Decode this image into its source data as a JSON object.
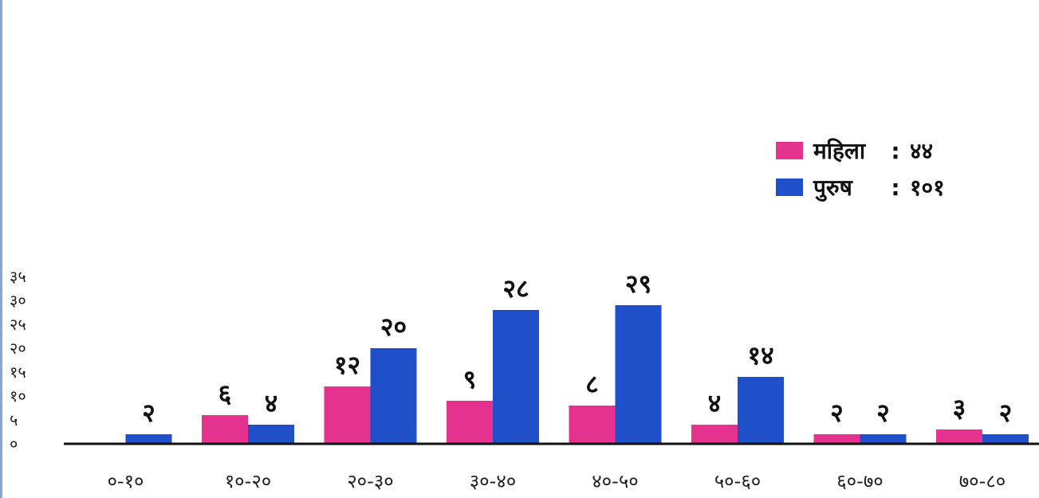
{
  "chart_data": {
    "type": "bar",
    "categories": [
      "०-१०",
      "१०-२०",
      "२०-३०",
      "३०-४०",
      "४०-५०",
      "५०-६०",
      "६०-७०",
      "७०-८०"
    ],
    "series": [
      {
        "name": "महिला",
        "color": "#e3338f",
        "values": [
          0,
          6,
          12,
          9,
          8,
          4,
          2,
          3
        ],
        "labels": [
          "",
          "६",
          "१२",
          "९",
          "८",
          "४",
          "२",
          "३"
        ]
      },
      {
        "name": "पुरुष",
        "color": "#1f4fc9",
        "values": [
          2,
          4,
          20,
          28,
          29,
          14,
          2,
          2
        ],
        "labels": [
          "२",
          "४",
          "२०",
          "२८",
          "२९",
          "१४",
          "२",
          "२"
        ]
      }
    ],
    "legend": [
      {
        "label": "महिला",
        "separator": ":",
        "total": "४४"
      },
      {
        "label": "पुरुष",
        "separator": ":",
        "total": "१०१"
      }
    ],
    "legend_position": "top-right",
    "yticks": [
      0,
      5,
      10,
      15,
      20,
      25,
      30,
      35
    ],
    "ytick_labels": [
      "०",
      "५",
      "१०",
      "१५",
      "२०",
      "२५",
      "३०",
      "३५"
    ],
    "ylim": [
      0,
      35
    ],
    "grid": false,
    "title": "",
    "xlabel": "",
    "ylabel": ""
  }
}
